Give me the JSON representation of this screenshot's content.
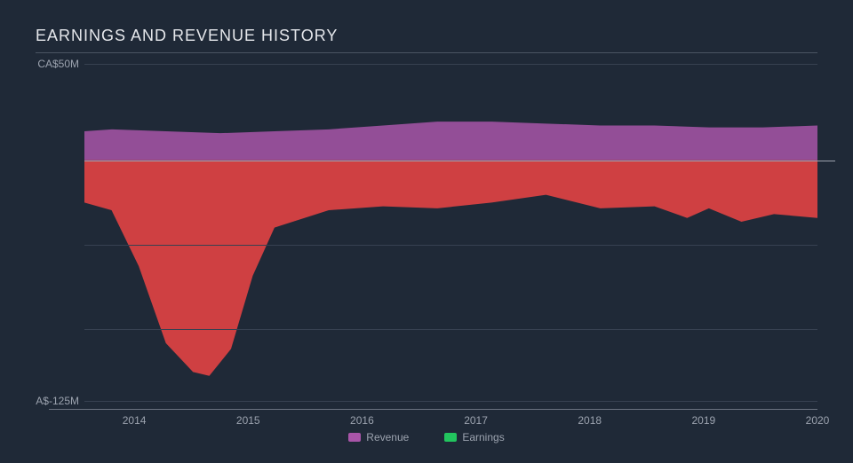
{
  "chart": {
    "type": "area",
    "title": "EARNINGS AND REVENUE HISTORY",
    "title_fontsize": 18,
    "title_color": "#e5e7eb",
    "background_color": "#1f2937",
    "grid_color": "#374151",
    "zero_line_color": "#9ca3af",
    "axis_text_color": "#9ca3af",
    "label_fontsize": 12,
    "y_axis": {
      "top_label": "CA$50M",
      "bottom_label": "A$-125M",
      "min": -125,
      "max": 50,
      "gridlines_at": [
        50,
        0,
        -43.75,
        -87.5,
        -125
      ]
    },
    "x_axis": {
      "min": 2013.25,
      "max": 2020,
      "ticks": [
        2014,
        2015,
        2016,
        2017,
        2018,
        2019,
        2020
      ]
    },
    "series": [
      {
        "name": "Revenue",
        "color": "#a855a8",
        "fill_opacity": 0.85,
        "points": [
          {
            "x": 2013.25,
            "y": 15
          },
          {
            "x": 2013.5,
            "y": 16
          },
          {
            "x": 2014,
            "y": 15
          },
          {
            "x": 2014.5,
            "y": 14
          },
          {
            "x": 2015,
            "y": 15
          },
          {
            "x": 2015.5,
            "y": 16
          },
          {
            "x": 2016,
            "y": 18
          },
          {
            "x": 2016.5,
            "y": 20
          },
          {
            "x": 2017,
            "y": 20
          },
          {
            "x": 2017.5,
            "y": 19
          },
          {
            "x": 2018,
            "y": 18
          },
          {
            "x": 2018.5,
            "y": 18
          },
          {
            "x": 2019,
            "y": 17
          },
          {
            "x": 2019.5,
            "y": 17
          },
          {
            "x": 2020,
            "y": 18
          }
        ]
      },
      {
        "name": "Earnings",
        "color": "#ef4444",
        "fill_opacity": 0.85,
        "points": [
          {
            "x": 2013.25,
            "y": -22
          },
          {
            "x": 2013.5,
            "y": -26
          },
          {
            "x": 2013.75,
            "y": -55
          },
          {
            "x": 2014,
            "y": -95
          },
          {
            "x": 2014.25,
            "y": -110
          },
          {
            "x": 2014.4,
            "y": -112
          },
          {
            "x": 2014.6,
            "y": -98
          },
          {
            "x": 2014.8,
            "y": -60
          },
          {
            "x": 2015,
            "y": -35
          },
          {
            "x": 2015.5,
            "y": -26
          },
          {
            "x": 2016,
            "y": -24
          },
          {
            "x": 2016.5,
            "y": -25
          },
          {
            "x": 2017,
            "y": -22
          },
          {
            "x": 2017.5,
            "y": -18
          },
          {
            "x": 2018,
            "y": -25
          },
          {
            "x": 2018.5,
            "y": -24
          },
          {
            "x": 2018.8,
            "y": -30
          },
          {
            "x": 2019,
            "y": -25
          },
          {
            "x": 2019.3,
            "y": -32
          },
          {
            "x": 2019.6,
            "y": -28
          },
          {
            "x": 2020,
            "y": -30
          }
        ]
      }
    ],
    "legend": [
      {
        "label": "Revenue",
        "swatch_color": "#a855a8"
      },
      {
        "label": "Earnings",
        "swatch_color": "#22c55e"
      }
    ]
  }
}
